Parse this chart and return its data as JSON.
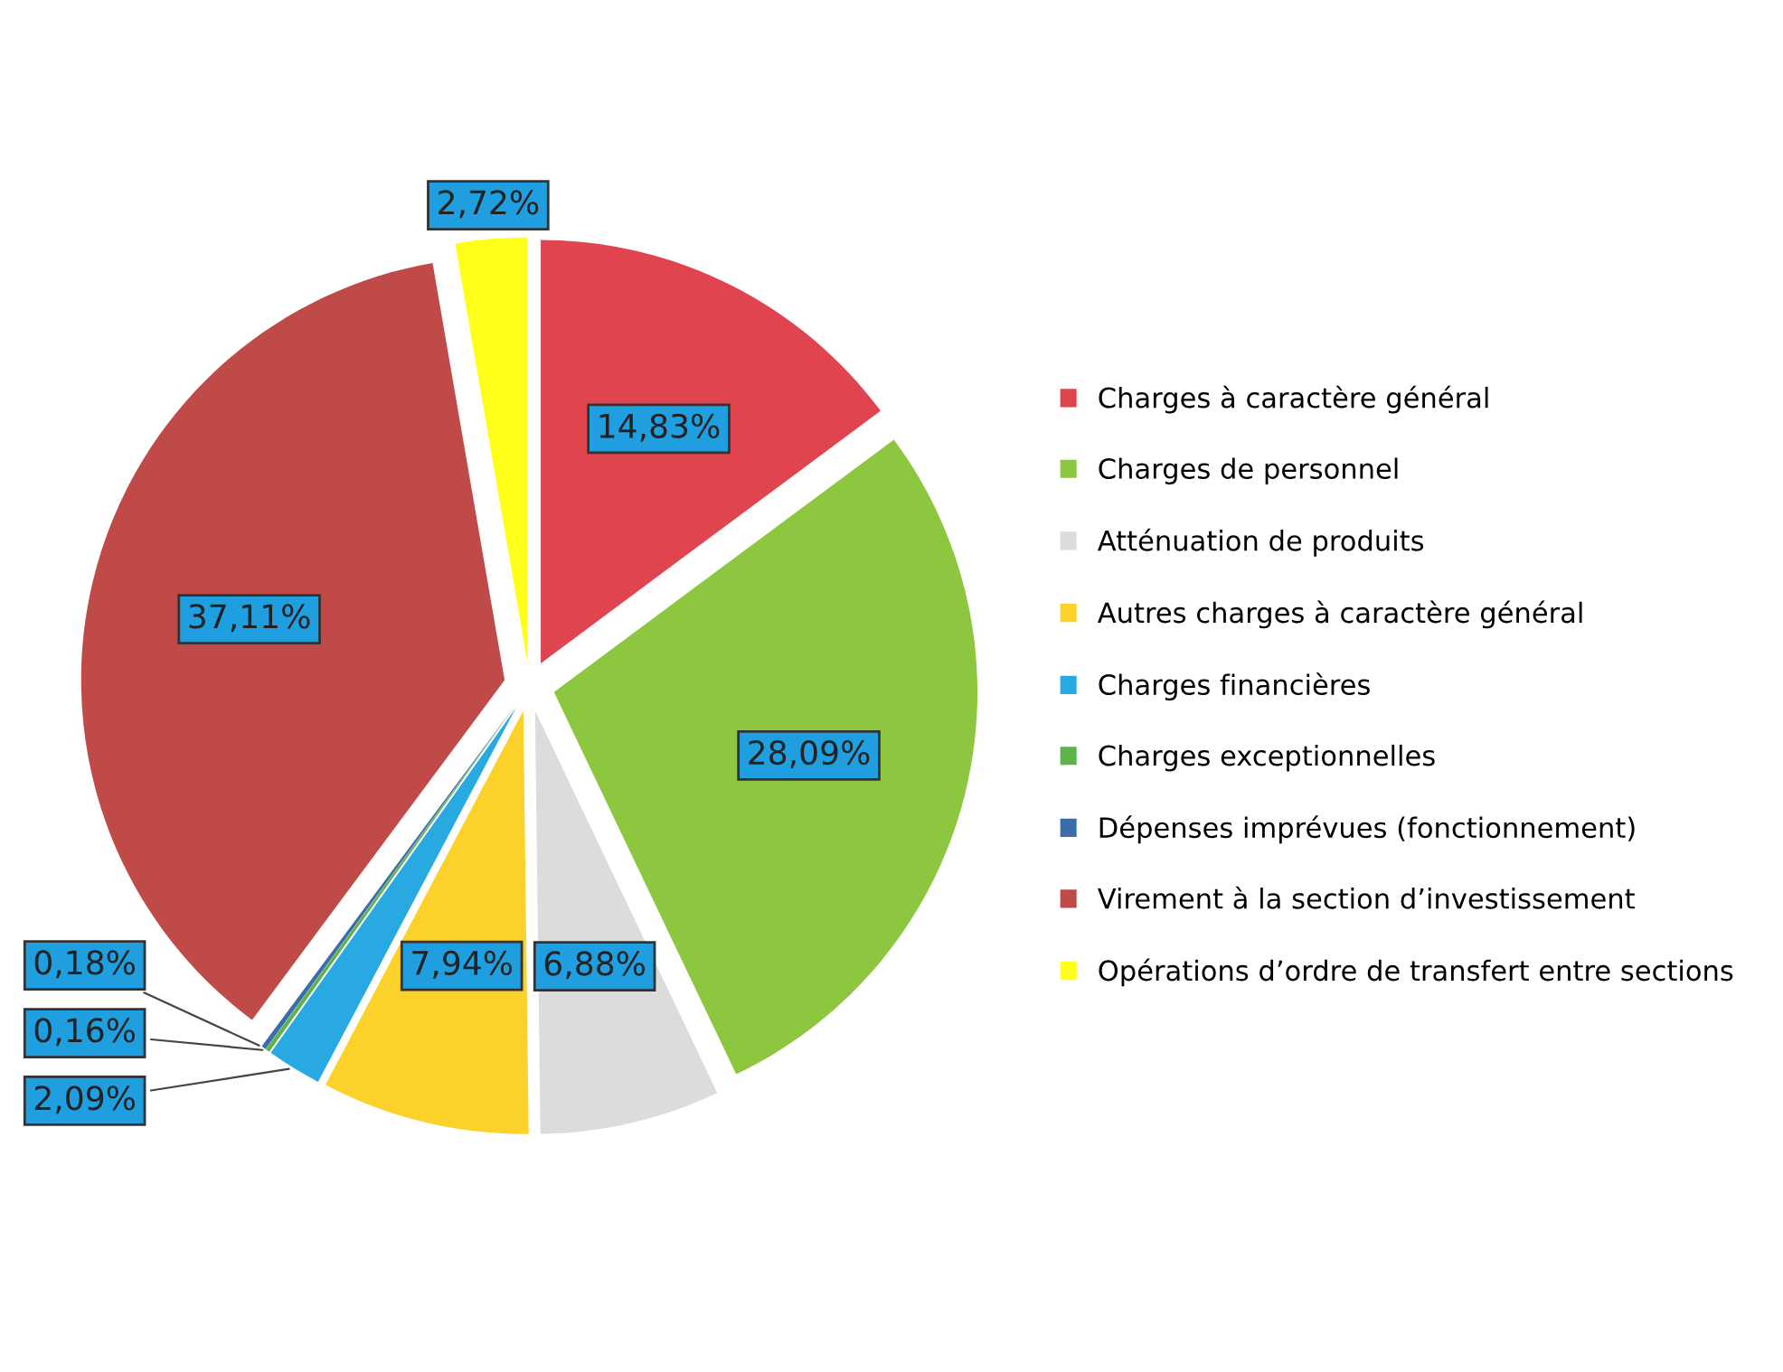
{
  "chart_data": {
    "type": "pie",
    "categories": [
      "Charges à caractère général",
      "Charges de personnel",
      "Atténuation de produits",
      "Autres charges à caractère général",
      "Charges financières",
      "Charges exceptionnelles",
      "Dépenses imprévues (fonctionnement)",
      "Virement à la section d’investissement",
      "Opérations d’ordre de transfert entre sections"
    ],
    "values": [
      14.83,
      28.09,
      6.88,
      7.94,
      2.09,
      0.16,
      0.18,
      37.11,
      2.72
    ],
    "value_labels": [
      "14,83%",
      "28,09%",
      "6,88%",
      "7,94%",
      "2,09%",
      "0,16%",
      "0,18%",
      "37,11%",
      "2,72%"
    ],
    "colors": [
      "#e0444e",
      "#8dc63f",
      "#dcdcdc",
      "#fcd12a",
      "#29a9e1",
      "#5db34a",
      "#3b6ea8",
      "#bf4a48",
      "#ffff1a"
    ],
    "legend": "right"
  }
}
